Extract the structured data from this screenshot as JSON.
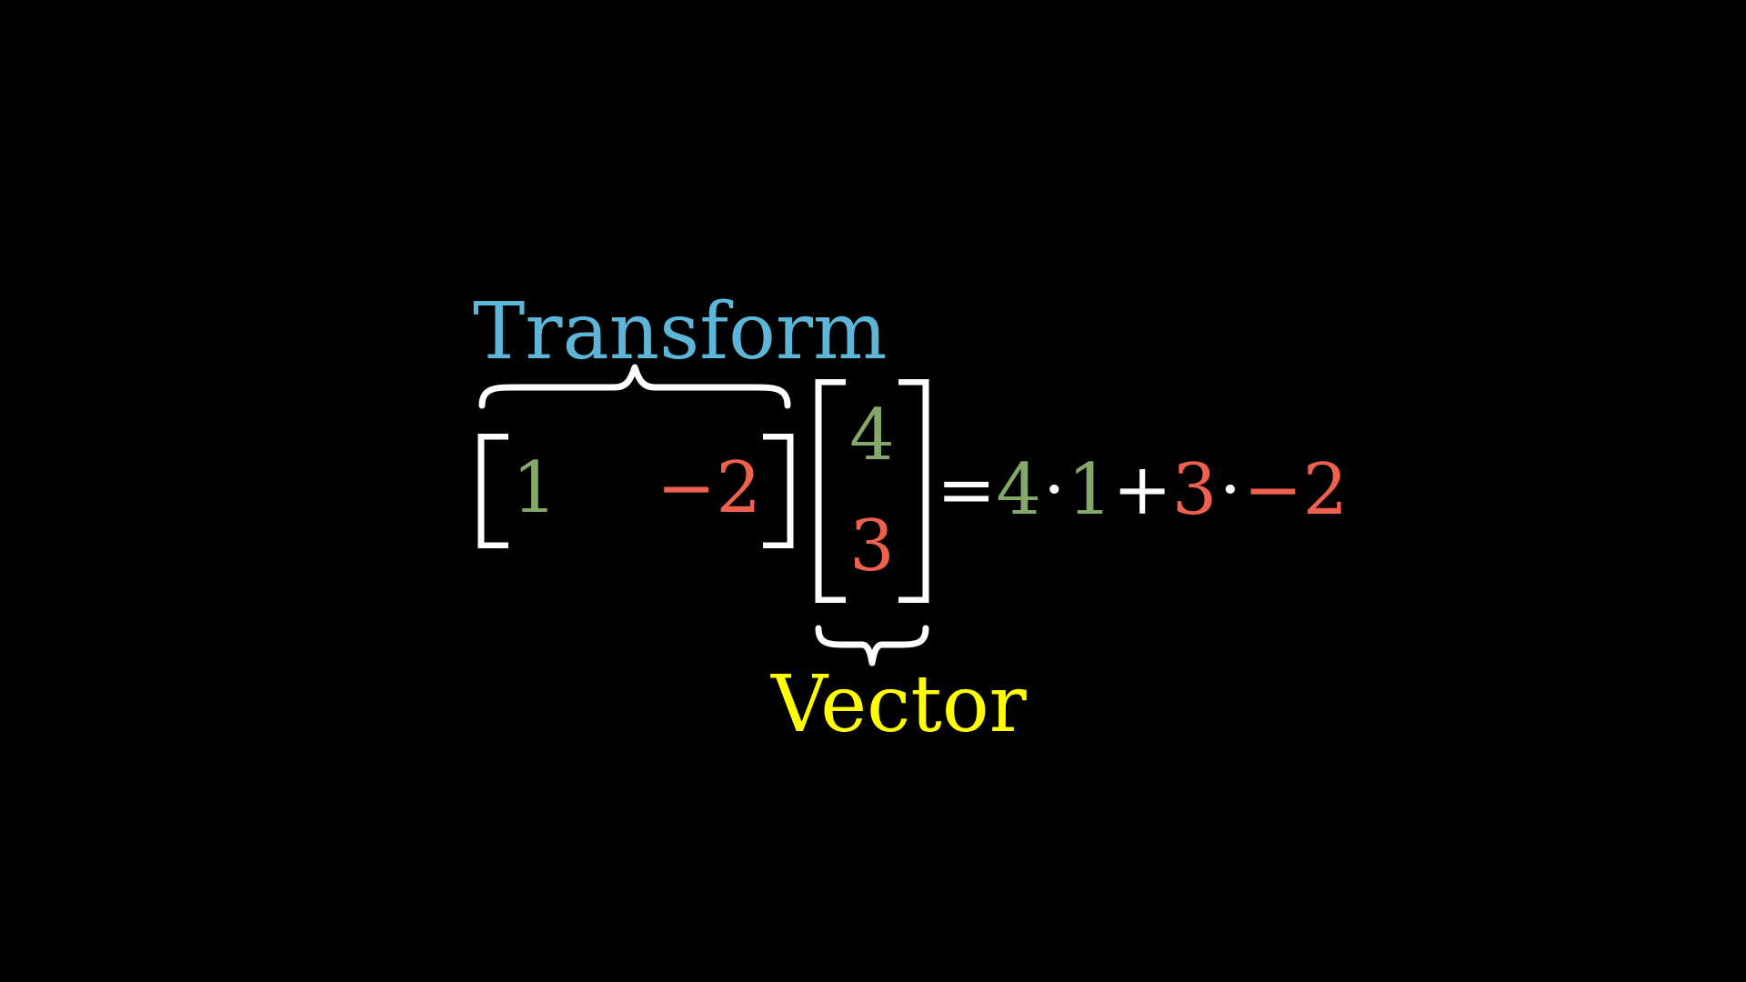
{
  "labels": {
    "transform": "Transform",
    "vector": "Vector"
  },
  "row_matrix": {
    "entries": [
      "1",
      "−2"
    ]
  },
  "column_vector": {
    "entries": [
      "4",
      "3"
    ]
  },
  "equation": {
    "equals": "=",
    "term1_a": "4",
    "dot1": "·",
    "term1_b": "1",
    "plus": "+",
    "term2_a": "3",
    "dot2": "·",
    "term2_b": "−2"
  },
  "colors": {
    "background": "#000000",
    "transform_label": "#5DB6D8",
    "vector_label": "#FFFF00",
    "first_component": "#83A869",
    "second_component": "#F0604F",
    "brackets_and_operators": "#FFFFFF"
  }
}
